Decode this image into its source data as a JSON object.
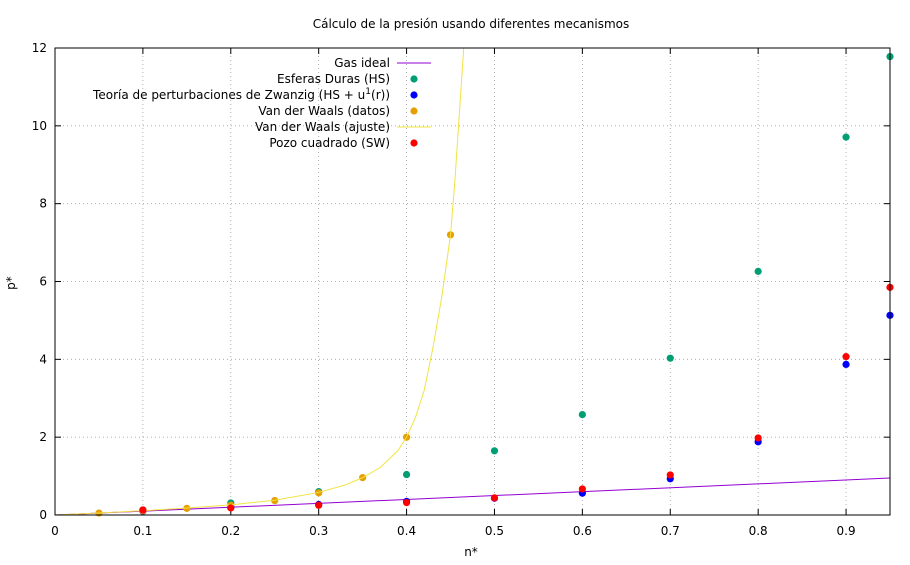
{
  "chart_data": {
    "type": "scatter",
    "title": "Cálculo de la presión usando diferentes mecanismos",
    "xlabel": "n*",
    "ylabel": "p*",
    "xlim": [
      0,
      0.95
    ],
    "ylim": [
      0,
      12
    ],
    "x_ticks": [
      "0",
      "0.1",
      "0.2",
      "0.3",
      "0.4",
      "0.5",
      "0.6",
      "0.7",
      "0.8",
      "0.9"
    ],
    "y_ticks": [
      "0",
      "2",
      "4",
      "6",
      "8",
      "10",
      "12"
    ],
    "grid": true,
    "legend_position": "top-right",
    "series": [
      {
        "name": "Gas ideal",
        "kind": "line",
        "color": "#9400d3",
        "x": [
          0,
          0.95
        ],
        "y": [
          0,
          0.95
        ]
      },
      {
        "name": "Esferas Duras (HS)",
        "kind": "points",
        "color": "#009e73",
        "x": [
          0.1,
          0.2,
          0.3,
          0.4,
          0.5,
          0.6,
          0.7,
          0.8,
          0.9,
          0.95
        ],
        "y": [
          0.13,
          0.31,
          0.6,
          1.04,
          1.65,
          2.58,
          4.03,
          6.26,
          9.71,
          11.78
        ]
      },
      {
        "name": "Teoría de perturbaciones de Zwanzig (HS + u¹(r))",
        "kind": "points",
        "color": "#0000ff",
        "x": [
          0.1,
          0.2,
          0.3,
          0.4,
          0.5,
          0.6,
          0.7,
          0.8,
          0.9,
          0.95
        ],
        "y": [
          0.1,
          0.2,
          0.27,
          0.35,
          0.43,
          0.56,
          0.93,
          1.88,
          3.87,
          5.13
        ]
      },
      {
        "name": "Van der Waals (datos)",
        "kind": "points",
        "color": "#e69f00",
        "x": [
          0.05,
          0.1,
          0.15,
          0.2,
          0.25,
          0.3,
          0.35,
          0.4,
          0.45
        ],
        "y": [
          0.05,
          0.11,
          0.17,
          0.25,
          0.37,
          0.57,
          0.96,
          2.0,
          7.2
        ]
      },
      {
        "name": "Van der Waals (ajuste)",
        "kind": "curve",
        "color": "#f0e442",
        "x": [
          0,
          0.05,
          0.1,
          0.15,
          0.2,
          0.25,
          0.3,
          0.33,
          0.35,
          0.37,
          0.39,
          0.4,
          0.41,
          0.42,
          0.43,
          0.44,
          0.45,
          0.455,
          0.46,
          0.465
        ],
        "y": [
          0,
          0.052,
          0.11,
          0.18,
          0.26,
          0.38,
          0.58,
          0.77,
          0.96,
          1.22,
          1.65,
          2.0,
          2.5,
          3.2,
          4.3,
          5.6,
          7.2,
          8.6,
          10.3,
          12.0
        ]
      },
      {
        "name": "Pozo cuadrado (SW)",
        "kind": "points",
        "color": "#ff0000",
        "x": [
          0.1,
          0.2,
          0.3,
          0.4,
          0.5,
          0.6,
          0.7,
          0.8,
          0.9,
          0.95
        ],
        "y": [
          0.13,
          0.18,
          0.25,
          0.32,
          0.44,
          0.67,
          1.03,
          1.98,
          4.07,
          5.85
        ]
      }
    ]
  }
}
